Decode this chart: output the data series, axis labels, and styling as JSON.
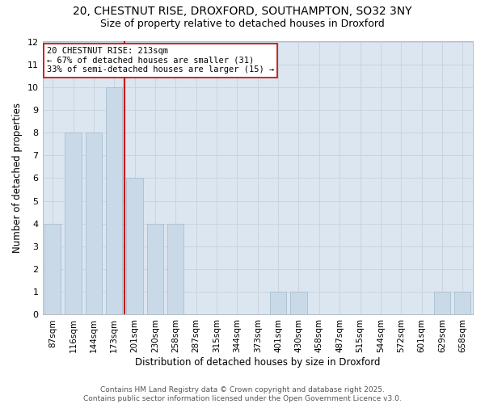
{
  "title_line1": "20, CHESTNUT RISE, DROXFORD, SOUTHAMPTON, SO32 3NY",
  "title_line2": "Size of property relative to detached houses in Droxford",
  "xlabel": "Distribution of detached houses by size in Droxford",
  "ylabel": "Number of detached properties",
  "footer": "Contains HM Land Registry data © Crown copyright and database right 2025.\nContains public sector information licensed under the Open Government Licence v3.0.",
  "categories": [
    "87sqm",
    "116sqm",
    "144sqm",
    "173sqm",
    "201sqm",
    "230sqm",
    "258sqm",
    "287sqm",
    "315sqm",
    "344sqm",
    "373sqm",
    "401sqm",
    "430sqm",
    "458sqm",
    "487sqm",
    "515sqm",
    "544sqm",
    "572sqm",
    "601sqm",
    "629sqm",
    "658sqm"
  ],
  "values": [
    4,
    8,
    8,
    10,
    6,
    4,
    4,
    0,
    0,
    0,
    0,
    1,
    1,
    0,
    0,
    0,
    0,
    0,
    0,
    1,
    1
  ],
  "bar_color": "#c9d9e8",
  "bar_edge_color": "#a8bfcf",
  "property_line_index": 4,
  "annotation_line1": "20 CHESTNUT RISE: 213sqm",
  "annotation_line2": "← 67% of detached houses are smaller (31)",
  "annotation_line3": "33% of semi-detached houses are larger (15) →",
  "annotation_box_color": "#ffffff",
  "annotation_box_edge": "#cc0000",
  "vline_color": "#cc0000",
  "ylim": [
    0,
    12
  ],
  "yticks": [
    0,
    1,
    2,
    3,
    4,
    5,
    6,
    7,
    8,
    9,
    10,
    11,
    12
  ],
  "grid_color": "#c8d4de",
  "bg_color": "#dce6f0",
  "fig_bg_color": "#ffffff",
  "title_fontsize": 10,
  "subtitle_fontsize": 9,
  "footer_fontsize": 6.5,
  "annotation_fontsize": 7.5,
  "xlabel_fontsize": 8.5,
  "ylabel_fontsize": 8.5,
  "tick_fontsize": 7.5,
  "ytick_fontsize": 8
}
